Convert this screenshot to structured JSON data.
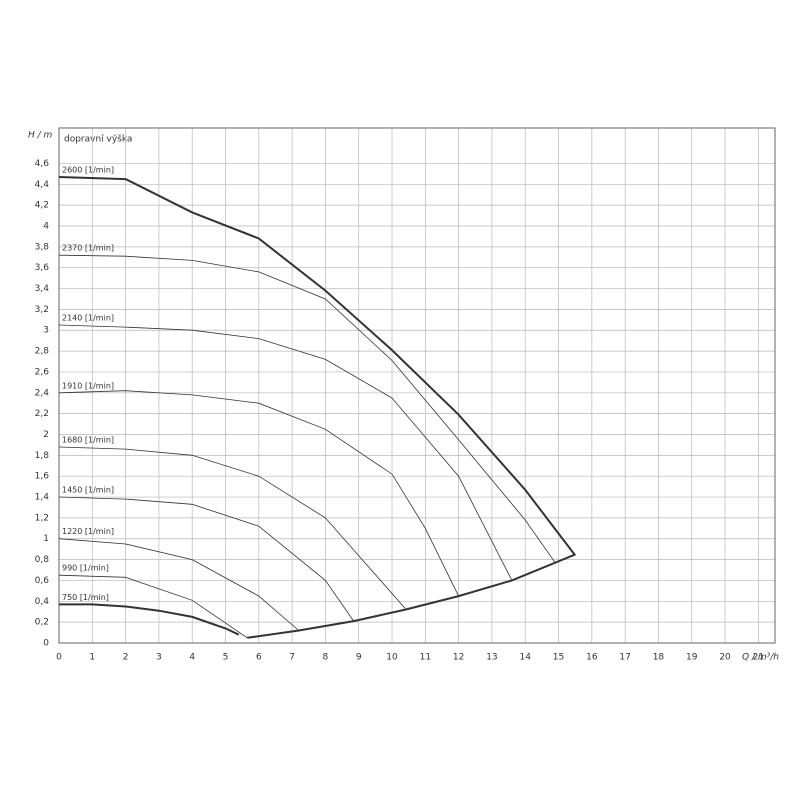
{
  "chart_data": {
    "type": "line",
    "y_label": "H / m",
    "subtitle": "dopravní výška",
    "x_label": "Q / m³/h",
    "xlim": [
      0,
      21.5
    ],
    "ylim": [
      0,
      4.94
    ],
    "xticks": [
      0,
      1,
      2,
      3,
      4,
      5,
      6,
      7,
      8,
      9,
      10,
      11,
      12,
      13,
      14,
      15,
      16,
      17,
      18,
      19,
      20,
      21
    ],
    "yticks": [
      0,
      {
        "value": 0.2,
        "label": "0,2"
      },
      {
        "value": 0.4,
        "label": "0,4"
      },
      {
        "value": 0.6,
        "label": "0,6"
      },
      {
        "value": 0.8,
        "label": "0,8"
      },
      1,
      {
        "value": 1.2,
        "label": "1,2"
      },
      {
        "value": 1.4,
        "label": "1,4"
      },
      {
        "value": 1.6,
        "label": "1,6"
      },
      {
        "value": 1.8,
        "label": "1,8"
      },
      2,
      {
        "value": 2.2,
        "label": "2,2"
      },
      {
        "value": 2.4,
        "label": "2,4"
      },
      {
        "value": 2.6,
        "label": "2,6"
      },
      {
        "value": 2.8,
        "label": "2,8"
      },
      3,
      {
        "value": 3.2,
        "label": "3,2"
      },
      {
        "value": 3.4,
        "label": "3,4"
      },
      {
        "value": 3.6,
        "label": "3,6"
      },
      {
        "value": 3.8,
        "label": "3,8"
      },
      4,
      {
        "value": 4.2,
        "label": "4,2"
      },
      {
        "value": 4.4,
        "label": "4,4"
      },
      {
        "value": 4.6,
        "label": "4,6"
      }
    ],
    "grid": true,
    "series": [
      {
        "name": "2600 [1/min]",
        "color": "#333333",
        "stroke_width": 2,
        "x": [
          0,
          2,
          4,
          6,
          8,
          10,
          12,
          14,
          15.5
        ],
        "values": [
          4.47,
          4.45,
          4.13,
          3.88,
          3.38,
          2.81,
          2.19,
          1.47,
          0.84
        ]
      },
      {
        "name": "2370 [1/min]",
        "color": "#333333",
        "stroke_width": 0.8,
        "x": [
          0,
          2,
          4,
          6,
          8,
          10,
          12,
          14,
          14.9
        ],
        "values": [
          3.72,
          3.71,
          3.67,
          3.56,
          3.3,
          2.71,
          1.95,
          1.18,
          0.77
        ]
      },
      {
        "name": "2140 [1/min]",
        "color": "#333333",
        "stroke_width": 0.8,
        "x": [
          0,
          2,
          4,
          6,
          8,
          10,
          12,
          13.6
        ],
        "values": [
          3.05,
          3.03,
          3.0,
          2.92,
          2.72,
          2.35,
          1.6,
          0.6
        ]
      },
      {
        "name": "1910 [1/min]",
        "color": "#333333",
        "stroke_width": 0.8,
        "x": [
          0,
          2,
          4,
          6,
          8,
          10,
          11,
          12
        ],
        "values": [
          2.4,
          2.42,
          2.38,
          2.3,
          2.05,
          1.62,
          1.1,
          0.45
        ]
      },
      {
        "name": "1680 [1/min]",
        "color": "#333333",
        "stroke_width": 0.8,
        "x": [
          0,
          2,
          4,
          6,
          8,
          10.4
        ],
        "values": [
          1.88,
          1.86,
          1.8,
          1.6,
          1.2,
          0.33
        ]
      },
      {
        "name": "1450 [1/min]",
        "color": "#333333",
        "stroke_width": 0.8,
        "x": [
          0,
          2,
          4,
          6,
          8,
          8.85
        ],
        "values": [
          1.4,
          1.38,
          1.33,
          1.12,
          0.6,
          0.21
        ]
      },
      {
        "name": "1220 [1/min]",
        "color": "#333333",
        "stroke_width": 0.8,
        "x": [
          0,
          2,
          4,
          6,
          7.2
        ],
        "values": [
          1.0,
          0.95,
          0.8,
          0.45,
          0.12
        ]
      },
      {
        "name": "990 [1/min]",
        "color": "#333333",
        "stroke_width": 0.8,
        "x": [
          0,
          2,
          4,
          5.65
        ],
        "values": [
          0.65,
          0.63,
          0.41,
          0.05
        ]
      },
      {
        "name": "750 [1/min]",
        "color": "#333333",
        "stroke_width": 2,
        "x": [
          0,
          1,
          2,
          3,
          4,
          5,
          5.4
        ],
        "values": [
          0.37,
          0.37,
          0.35,
          0.31,
          0.25,
          0.14,
          0.08
        ]
      },
      {
        "color": "#333333",
        "stroke_width": 2,
        "x": [
          5.65,
          7.2,
          8.85,
          10.4,
          12,
          13.6,
          14.9,
          15.5
        ],
        "values": [
          0.05,
          0.12,
          0.21,
          0.32,
          0.45,
          0.6,
          0.77,
          0.85
        ]
      }
    ]
  }
}
